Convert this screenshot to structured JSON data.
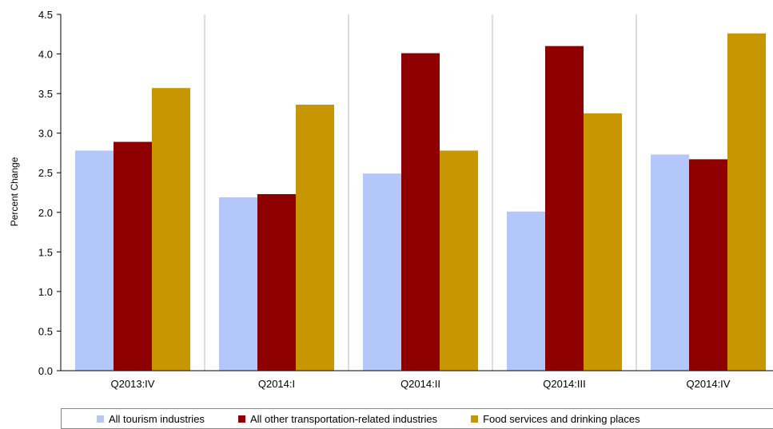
{
  "chart_data": {
    "type": "bar",
    "categories": [
      "Q2013:IV",
      "Q2014:I",
      "Q2014:II",
      "Q2014:III",
      "Q2014:IV"
    ],
    "series": [
      {
        "name": "All tourism industries",
        "color": "#b3c7fb",
        "values": [
          2.78,
          2.19,
          2.49,
          2.01,
          2.73
        ]
      },
      {
        "name": "All other transportation-related industries",
        "color": "#8e0000",
        "values": [
          2.89,
          2.23,
          4.01,
          4.1,
          2.67
        ]
      },
      {
        "name": "Food services and drinking places",
        "color": "#c89600",
        "values": [
          3.57,
          3.36,
          2.78,
          3.25,
          4.26
        ]
      }
    ],
    "ylabel": "Percent Change",
    "ylim": [
      0,
      4.5
    ],
    "yticks": [
      "0.0",
      "0.5",
      "1.0",
      "1.5",
      "2.0",
      "2.5",
      "3.0",
      "3.5",
      "4.0",
      "4.5"
    ],
    "grid": "vertical separators only",
    "legend": "bottom"
  }
}
